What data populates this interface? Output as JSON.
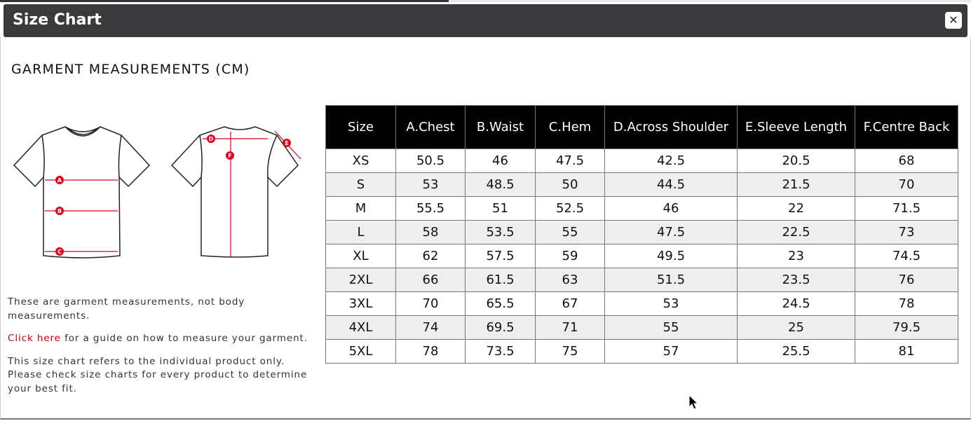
{
  "dialog": {
    "title": "Size Chart",
    "close_icon": "close-icon"
  },
  "heading": "GARMENT MEASUREMENTS (CM)",
  "diagram": {
    "labels": [
      "A",
      "B",
      "C",
      "D",
      "E",
      "F"
    ],
    "accent": "#e0001b"
  },
  "notes": {
    "line1": "These are garment measurements, not body measurements.",
    "link": "Click here",
    "line2": " for a guide on how to measure your garment.",
    "line3": "This size chart refers to the individual product only. Please check size charts for every product to determine your best fit."
  },
  "table": {
    "headers": [
      "Size",
      "A.Chest",
      "B.Waist",
      "C.Hem",
      "D.Across Shoulder",
      "E.Sleeve Length",
      "F.Centre Back"
    ],
    "rows": [
      [
        "XS",
        "50.5",
        "46",
        "47.5",
        "42.5",
        "20.5",
        "68"
      ],
      [
        "S",
        "53",
        "48.5",
        "50",
        "44.5",
        "21.5",
        "70"
      ],
      [
        "M",
        "55.5",
        "51",
        "52.5",
        "46",
        "22",
        "71.5"
      ],
      [
        "L",
        "58",
        "53.5",
        "55",
        "47.5",
        "22.5",
        "73"
      ],
      [
        "XL",
        "62",
        "57.5",
        "59",
        "49.5",
        "23",
        "74.5"
      ],
      [
        "2XL",
        "66",
        "61.5",
        "63",
        "51.5",
        "23.5",
        "76"
      ],
      [
        "3XL",
        "70",
        "65.5",
        "67",
        "53",
        "24.5",
        "78"
      ],
      [
        "4XL",
        "74",
        "69.5",
        "71",
        "55",
        "25",
        "79.5"
      ],
      [
        "5XL",
        "78",
        "73.5",
        "75",
        "57",
        "25.5",
        "81"
      ]
    ]
  }
}
